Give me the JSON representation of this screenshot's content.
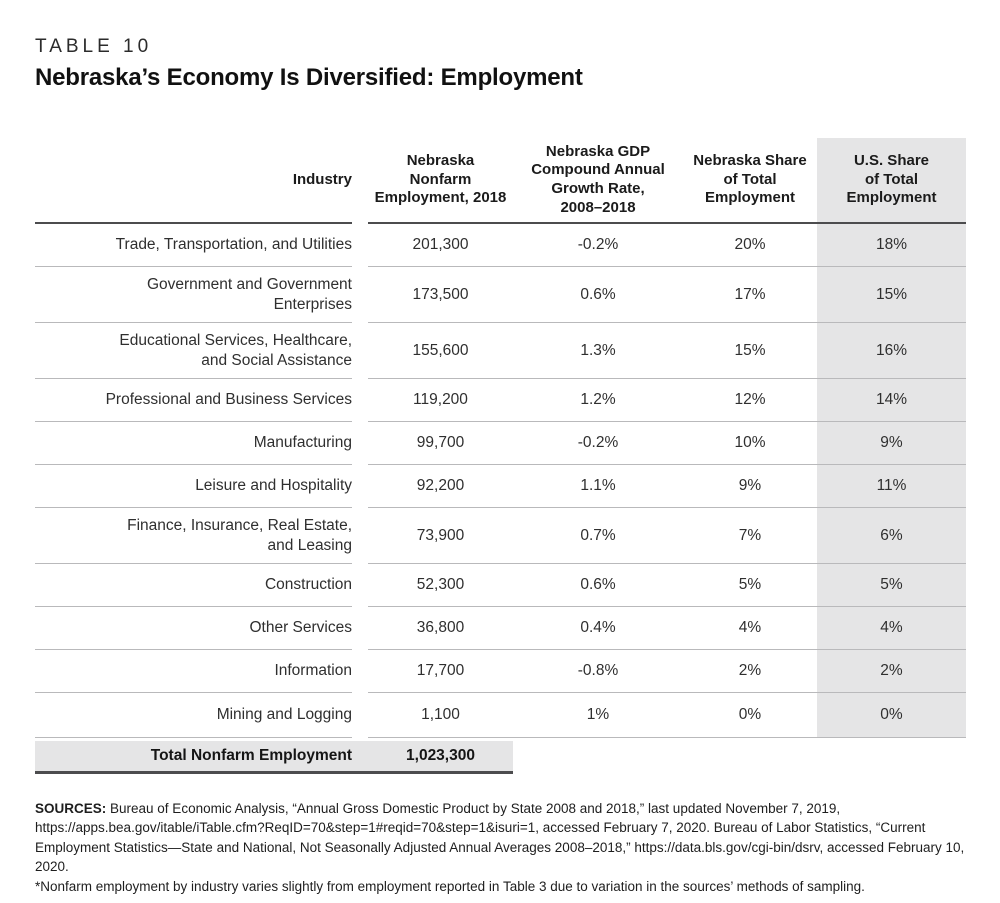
{
  "header": {
    "eyebrow": "TABLE 10",
    "title": "Nebraska’s Economy Is Diversified: Employment"
  },
  "table": {
    "columns": [
      "Industry",
      "Nebraska\nNonfarm\nEmployment, 2018",
      "Nebraska GDP\nCompound Annual\nGrowth Rate,\n2008–2018",
      "Nebraska Share\nof Total\nEmployment",
      "U.S. Share\nof Total\nEmployment"
    ],
    "rows": [
      {
        "industry": "Trade, Transportation, and Utilities",
        "employment": "201,300",
        "growth": "-0.2%",
        "ne_share": "20%",
        "us_share": "18%"
      },
      {
        "industry": "Government and Government\nEnterprises",
        "employment": "173,500",
        "growth": "0.6%",
        "ne_share": "17%",
        "us_share": "15%"
      },
      {
        "industry": "Educational Services, Healthcare,\nand Social Assistance",
        "employment": "155,600",
        "growth": "1.3%",
        "ne_share": "15%",
        "us_share": "16%"
      },
      {
        "industry": "Professional and Business Services",
        "employment": "119,200",
        "growth": "1.2%",
        "ne_share": "12%",
        "us_share": "14%"
      },
      {
        "industry": "Manufacturing",
        "employment": "99,700",
        "growth": "-0.2%",
        "ne_share": "10%",
        "us_share": "9%"
      },
      {
        "industry": "Leisure and Hospitality",
        "employment": "92,200",
        "growth": "1.1%",
        "ne_share": "9%",
        "us_share": "11%"
      },
      {
        "industry": "Finance, Insurance, Real Estate,\nand Leasing",
        "employment": "73,900",
        "growth": "0.7%",
        "ne_share": "7%",
        "us_share": "6%"
      },
      {
        "industry": "Construction",
        "employment": "52,300",
        "growth": "0.6%",
        "ne_share": "5%",
        "us_share": "5%"
      },
      {
        "industry": "Other Services",
        "employment": "36,800",
        "growth": "0.4%",
        "ne_share": "4%",
        "us_share": "4%"
      },
      {
        "industry": "Information",
        "employment": "17,700",
        "growth": "-0.8%",
        "ne_share": "2%",
        "us_share": "2%"
      },
      {
        "industry": "Mining and Logging",
        "employment": "1,100",
        "growth": "1%",
        "ne_share": "0%",
        "us_share": "0%"
      }
    ],
    "total": {
      "label": "Total Nonfarm Employment",
      "value": "1,023,300"
    }
  },
  "footer": {
    "sources_label": "SOURCES:",
    "sources_text": " Bureau of Economic Analysis, “Annual Gross Domestic Product by State 2008 and 2018,” last updated November 7, 2019, https://apps.bea.gov/itable/iTable.cfm?ReqID=70&step=1#reqid=70&step=1&isuri=1, accessed February 7, 2020. Bureau of Labor Statistics, “Current Employment Statistics—State and National, Not Seasonally Adjusted Annual Averages 2008–2018,” https://data.bls.gov/cgi-bin/dsrv, accessed February 10, 2020.",
    "footnote": "*Nonfarm employment by industry varies slightly from employment reported in Table 3 due to variation in the sources’ methods of sampling."
  },
  "colors": {
    "shade": "#e5e5e6",
    "rule_dark": "#4c4c4e",
    "rule_light": "#b9b9bb",
    "text": "#232323"
  }
}
